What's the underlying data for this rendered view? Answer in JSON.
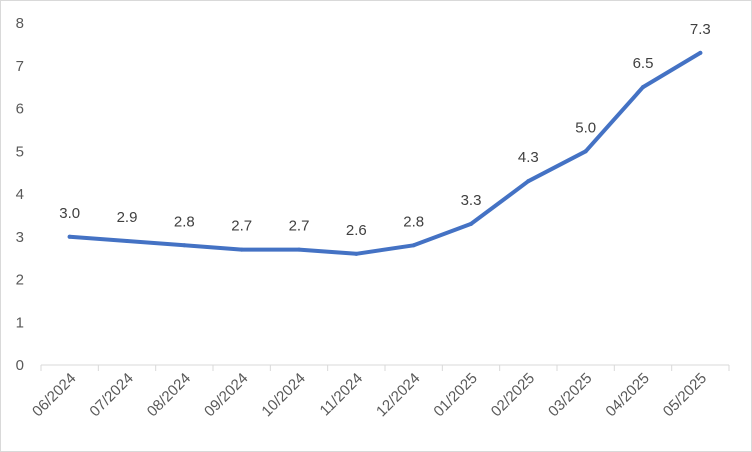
{
  "chart_data": {
    "type": "line",
    "title": "",
    "xlabel": "",
    "ylabel": "",
    "categories": [
      "06/2024",
      "07/2024",
      "08/2024",
      "09/2024",
      "10/2024",
      "11/2024",
      "12/2024",
      "01/2025",
      "02/2025",
      "03/2025",
      "04/2025",
      "05/2025"
    ],
    "series": [
      {
        "values": [
          3.0,
          2.9,
          2.8,
          2.7,
          2.7,
          2.6,
          2.8,
          3.3,
          4.3,
          5.0,
          6.5,
          7.3
        ],
        "labels": [
          "3.0",
          "2.9",
          "2.8",
          "2.7",
          "2.7",
          "2.6",
          "2.8",
          "3.3",
          "4.3",
          "5.0",
          "6.5",
          "7.3"
        ],
        "color": "#4472c4"
      }
    ],
    "ylim": [
      0,
      8
    ],
    "yticks": [
      "0",
      "1",
      "2",
      "3",
      "4",
      "5",
      "6",
      "7",
      "8"
    ],
    "grid": false,
    "legend": "none",
    "colors": {
      "axis": "#d9d9d9",
      "text": "#595959",
      "label": "#404040"
    }
  }
}
